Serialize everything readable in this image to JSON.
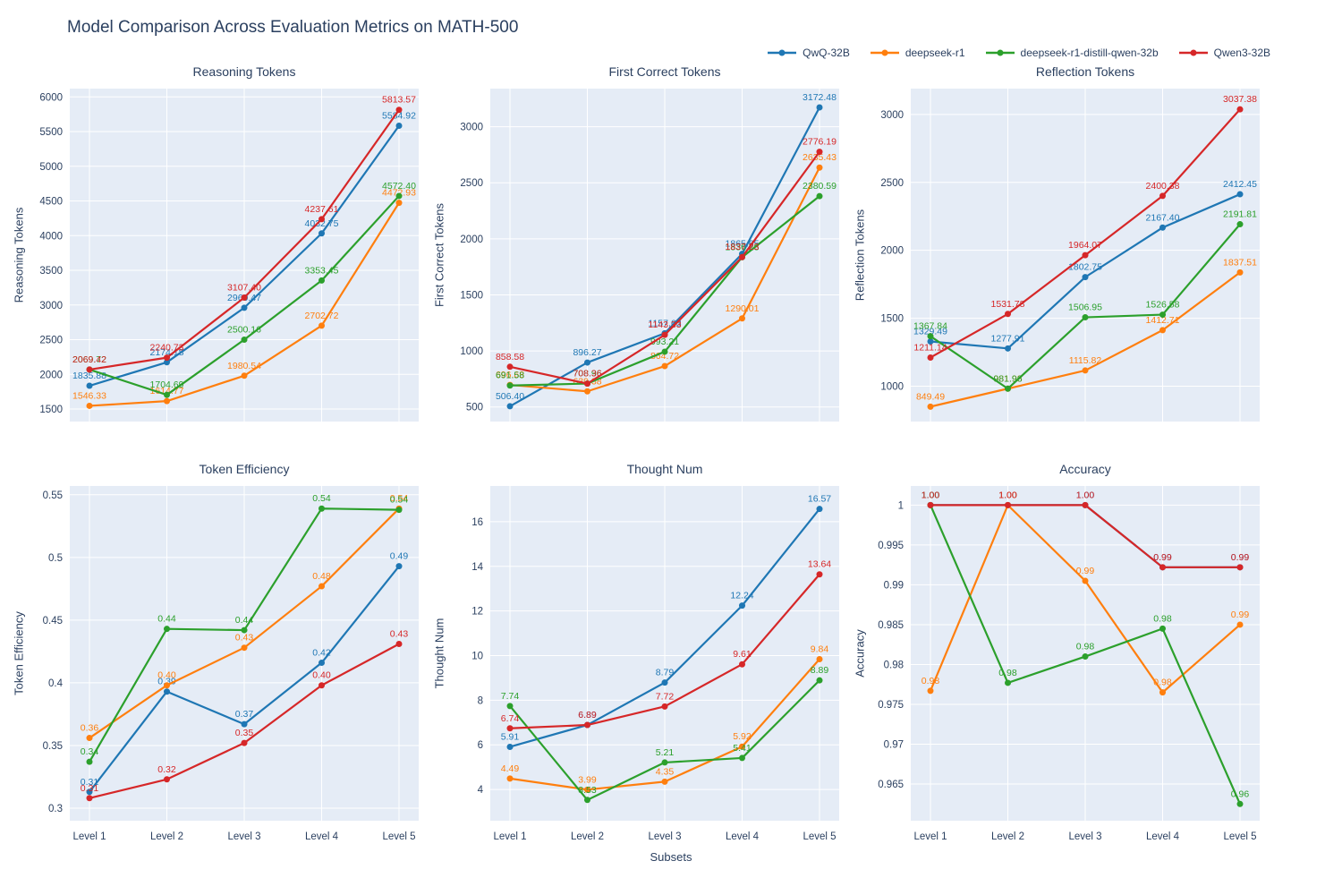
{
  "page": {
    "title": "Model Comparison Across Evaluation Metrics on MATH-500",
    "xlabel": "Subsets"
  },
  "colors": {
    "plot_bg": "#e5ecf6",
    "grid": "#ffffff",
    "text": "#2a3f5f"
  },
  "models": [
    {
      "name": "QwQ-32B",
      "color": "#1f77b4"
    },
    {
      "name": "deepseek-r1",
      "color": "#ff7f0e"
    },
    {
      "name": "deepseek-r1-distill-qwen-32b",
      "color": "#2ca02c"
    },
    {
      "name": "Qwen3-32B",
      "color": "#d62728"
    }
  ],
  "categories": [
    "Level 1",
    "Level 2",
    "Level 3",
    "Level 4",
    "Level 5"
  ],
  "chart_data": [
    {
      "type": "line",
      "title": "Reasoning Tokens",
      "ylabel": "Reasoning Tokens",
      "ymin": 1320,
      "ymax": 6120,
      "yticks": [
        1500,
        2000,
        2500,
        3000,
        3500,
        4000,
        4500,
        5000,
        5500,
        6000
      ],
      "ytick_labels": [
        "1500",
        "2000",
        "2500",
        "3000",
        "3500",
        "4000",
        "4500",
        "5000",
        "5500",
        "6000"
      ],
      "show_x_ticks": false,
      "grid": true,
      "series": [
        {
          "model": "QwQ-32B",
          "values": [
            1835.88,
            2174.18,
            2960.47,
            4032.75,
            5584.92
          ]
        },
        {
          "model": "deepseek-r1",
          "values": [
            1546.33,
            1614.77,
            1980.54,
            2702.72,
            4472.93
          ]
        },
        {
          "model": "deepseek-r1-distill-qwen-32b",
          "values": [
            2069.72,
            1704.69,
            2500.16,
            3353.45,
            4572.4
          ]
        },
        {
          "model": "Qwen3-32B",
          "values": [
            2069.42,
            2240.73,
            3107.4,
            4237.61,
            5813.57
          ]
        }
      ]
    },
    {
      "type": "line",
      "title": "First Correct Tokens",
      "ylabel": "First Correct Tokens",
      "ymin": 370,
      "ymax": 3340,
      "yticks": [
        500,
        1000,
        1500,
        2000,
        2500,
        3000
      ],
      "ytick_labels": [
        "500",
        "1000",
        "1500",
        "2000",
        "2500",
        "3000"
      ],
      "show_x_ticks": false,
      "grid": true,
      "series": [
        {
          "model": "QwQ-32B",
          "values": [
            506.4,
            896.27,
            1157.63,
            1865.65,
            3172.48
          ]
        },
        {
          "model": "deepseek-r1",
          "values": [
            696.68,
            639.38,
            864.72,
            1290.01,
            2635.43
          ]
        },
        {
          "model": "deepseek-r1-distill-qwen-32b",
          "values": [
            691.58,
            708.96,
            993.21,
            1836.28,
            2380.59
          ]
        },
        {
          "model": "Qwen3-32B",
          "values": [
            858.58,
            708.36,
            1143.33,
            1837.23,
            2776.19
          ]
        }
      ]
    },
    {
      "type": "line",
      "title": "Reflection Tokens",
      "ylabel": "Reflection Tokens",
      "ymin": 740,
      "ymax": 3190,
      "yticks": [
        1000,
        1500,
        2000,
        2500,
        3000
      ],
      "ytick_labels": [
        "1000",
        "1500",
        "2000",
        "2500",
        "3000"
      ],
      "show_x_ticks": false,
      "grid": true,
      "series": [
        {
          "model": "QwQ-32B",
          "values": [
            1329.49,
            1277.91,
            1802.75,
            2167.4,
            2412.45
          ]
        },
        {
          "model": "deepseek-r1",
          "values": [
            849.49,
            981.98,
            1115.82,
            1412.71,
            1837.51
          ]
        },
        {
          "model": "deepseek-r1-distill-qwen-32b",
          "values": [
            1367.84,
            981.96,
            1506.95,
            1526.58,
            2191.81
          ]
        },
        {
          "model": "Qwen3-32B",
          "values": [
            1211.14,
            1531.78,
            1964.07,
            2400.38,
            3037.38
          ]
        }
      ]
    },
    {
      "type": "line",
      "title": "Token Efficiency",
      "ylabel": "Token Efficiency",
      "ymin": 0.29,
      "ymax": 0.557,
      "yticks": [
        0.3,
        0.35,
        0.4,
        0.45,
        0.5,
        0.55
      ],
      "ytick_labels": [
        "0.3",
        "0.35",
        "0.4",
        "0.45",
        "0.5",
        "0.55"
      ],
      "show_x_ticks": true,
      "grid": true,
      "series": [
        {
          "model": "QwQ-32B",
          "values": [
            0.313,
            0.393,
            0.367,
            0.416,
            0.493
          ],
          "labels": [
            "0.31",
            "0.39",
            "0.37",
            "0.42",
            "0.49"
          ]
        },
        {
          "model": "deepseek-r1",
          "values": [
            0.356,
            0.398,
            0.428,
            0.477,
            0.539
          ],
          "labels": [
            "0.36",
            "0.40",
            "0.43",
            "0.48",
            "0.54"
          ]
        },
        {
          "model": "deepseek-r1-distill-qwen-32b",
          "values": [
            0.337,
            0.443,
            0.442,
            0.539,
            0.538
          ],
          "labels": [
            "0.34",
            "0.44",
            "0.44",
            "0.54",
            "0.54"
          ]
        },
        {
          "model": "Qwen3-32B",
          "values": [
            0.308,
            0.323,
            0.352,
            0.398,
            0.431
          ],
          "labels": [
            "0.31",
            "0.32",
            "0.35",
            "0.40",
            "0.43"
          ]
        }
      ]
    },
    {
      "type": "line",
      "title": "Thought Num",
      "ylabel": "Thought Num",
      "ymin": 2.6,
      "ymax": 17.6,
      "yticks": [
        4,
        6,
        8,
        10,
        12,
        14,
        16
      ],
      "ytick_labels": [
        "4",
        "6",
        "8",
        "10",
        "12",
        "14",
        "16"
      ],
      "show_x_ticks": true,
      "grid": true,
      "series": [
        {
          "model": "QwQ-32B",
          "values": [
            5.91,
            6.89,
            8.79,
            12.24,
            16.57
          ]
        },
        {
          "model": "deepseek-r1",
          "values": [
            4.49,
            3.99,
            4.35,
            5.92,
            9.84
          ]
        },
        {
          "model": "deepseek-r1-distill-qwen-32b",
          "values": [
            7.74,
            3.53,
            5.21,
            5.41,
            8.89
          ]
        },
        {
          "model": "Qwen3-32B",
          "values": [
            6.74,
            6.89,
            7.72,
            9.61,
            13.64
          ]
        }
      ]
    },
    {
      "type": "line",
      "title": "Accuracy",
      "ylabel": "Accuracy",
      "ymin": 0.9604,
      "ymax": 1.0024,
      "yticks": [
        0.965,
        0.97,
        0.975,
        0.98,
        0.985,
        0.99,
        0.995,
        1
      ],
      "ytick_labels": [
        "0.965",
        "0.97",
        "0.975",
        "0.98",
        "0.985",
        "0.99",
        "0.995",
        "1"
      ],
      "show_x_ticks": true,
      "grid": true,
      "series": [
        {
          "model": "QwQ-32B",
          "values": [
            1.0,
            1.0,
            1.0,
            0.9922,
            0.9922
          ],
          "labels": [
            "1.00",
            "1.00",
            "1.00",
            "0.99",
            "0.99"
          ]
        },
        {
          "model": "deepseek-r1",
          "values": [
            0.9767,
            1.0,
            0.9905,
            0.9765,
            0.985
          ],
          "labels": [
            "0.98",
            "1.00",
            "0.99",
            "0.98",
            "0.99"
          ]
        },
        {
          "model": "deepseek-r1-distill-qwen-32b",
          "values": [
            1.0,
            0.9777,
            0.981,
            0.9845,
            0.9625
          ],
          "labels": [
            "1.00",
            "0.98",
            "0.98",
            "0.98",
            "0.96"
          ]
        },
        {
          "model": "Qwen3-32B",
          "values": [
            1.0,
            1.0,
            1.0,
            0.9922,
            0.9922
          ],
          "labels": [
            "1.00",
            "1.00",
            "1.00",
            "0.99",
            "0.99"
          ]
        }
      ]
    }
  ]
}
